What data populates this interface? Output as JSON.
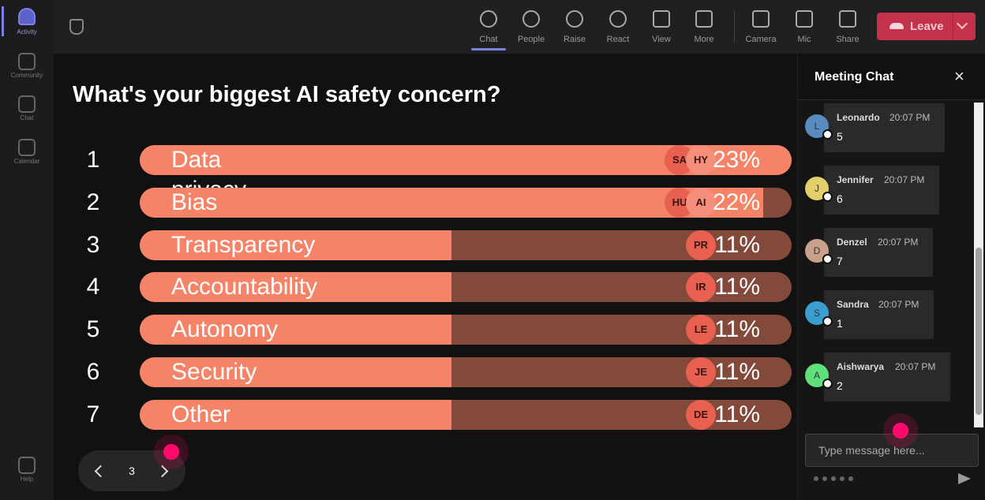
{
  "sidebar": {
    "items": [
      "Activity",
      "Community",
      "Chat",
      "Calendar",
      "Help"
    ]
  },
  "toolbar": {
    "items": [
      "Chat",
      "People",
      "Raise",
      "React",
      "View",
      "More",
      "Camera",
      "Mic",
      "Share"
    ],
    "leave": "Leave"
  },
  "poll": {
    "question": "What's your biggest AI safety concern?",
    "options": [
      {
        "rank": 1,
        "label": "Data privacy",
        "percent": 23,
        "percent_label": "23%",
        "voters": [
          "SA",
          "HY"
        ]
      },
      {
        "rank": 2,
        "label": "Bias",
        "percent": 22,
        "percent_label": "22%",
        "voters": [
          "HU",
          "AI"
        ]
      },
      {
        "rank": 3,
        "label": "Transparency",
        "percent": 11,
        "percent_label": "11%",
        "voters": [
          "PR"
        ]
      },
      {
        "rank": 4,
        "label": "Accountability",
        "percent": 11,
        "percent_label": "11%",
        "voters": [
          "IR"
        ]
      },
      {
        "rank": 5,
        "label": "Autonomy",
        "percent": 11,
        "percent_label": "11%",
        "voters": [
          "LE"
        ]
      },
      {
        "rank": 6,
        "label": "Security",
        "percent": 11,
        "percent_label": "11%",
        "voters": [
          "JE"
        ]
      },
      {
        "rank": 7,
        "label": "Other",
        "percent": 11,
        "percent_label": "11%",
        "voters": [
          "DE"
        ]
      }
    ],
    "page": 3
  },
  "chat": {
    "title": "Meeting Chat",
    "messages": [
      {
        "avatar": "L",
        "name": "Leonardo",
        "time": "20:07 PM",
        "text": "5"
      },
      {
        "avatar": "J",
        "name": "Jennifer",
        "time": "20:07 PM",
        "text": "6"
      },
      {
        "avatar": "D",
        "name": "Denzel",
        "time": "20:07 PM",
        "text": "7"
      },
      {
        "avatar": "S",
        "name": "Sandra",
        "time": "20:07 PM",
        "text": "1"
      },
      {
        "avatar": "A",
        "name": "Aishwarya",
        "time": "20:07 PM",
        "text": "2"
      }
    ],
    "input_placeholder": "Type message here..."
  }
}
